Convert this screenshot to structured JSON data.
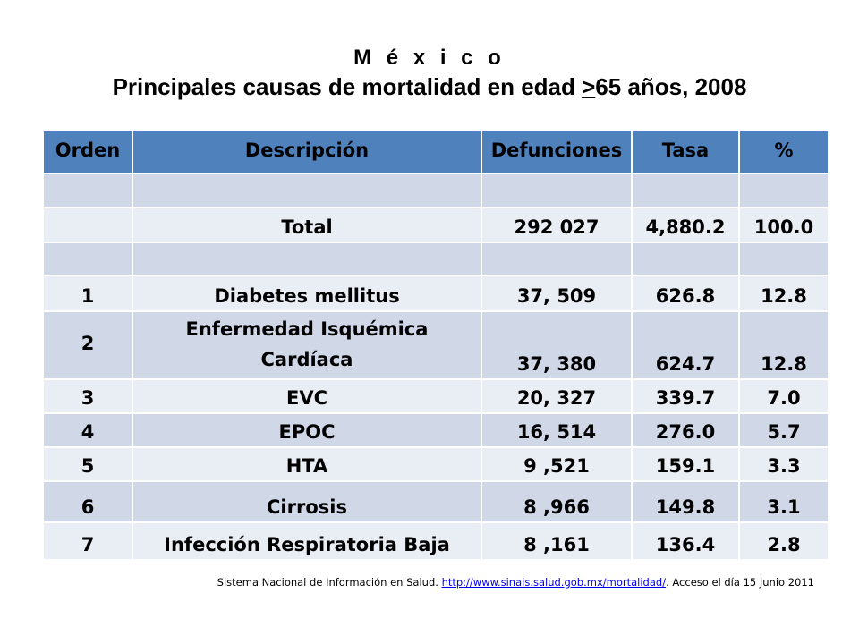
{
  "title": {
    "line1": "M é x i c o",
    "line2_prefix": "Principales causas de mortalidad en edad ",
    "line2_underlined": ">",
    "line2_suffix": "65 años, 2008"
  },
  "table": {
    "headers": [
      "Orden",
      "Descripción",
      "Defunciones",
      "Tasa",
      "%"
    ],
    "total_row": [
      "",
      "Total",
      "292 027",
      "4,880.2",
      "100.0"
    ],
    "rows": [
      [
        "1",
        "Diabetes mellitus",
        "37, 509",
        "626.8",
        "12.8"
      ],
      [
        "2",
        "Enfermedad Isquémica Cardíaca",
        "37, 380",
        "624.7",
        "12.8"
      ],
      [
        "3",
        "EVC",
        "20, 327",
        "339.7",
        "7.0"
      ],
      [
        "4",
        "EPOC",
        "16, 514",
        "276.0",
        "5.7"
      ],
      [
        "5",
        "HTA",
        "9 ,521",
        "159.1",
        "3.3"
      ],
      [
        "6",
        "Cirrosis",
        "8 ,966",
        "149.8",
        "3.1"
      ],
      [
        "7",
        "Infección Respiratoria Baja",
        "8 ,161",
        "136.4",
        "2.8"
      ]
    ]
  },
  "source": {
    "prefix": "Sistema Nacional de Información en Salud. ",
    "link": "http://www.sinais.salud.gob.mx/mortalidad/",
    "suffix": ".  Acceso el día 15 Junio 2011"
  },
  "colors": {
    "header": "#4f81bd",
    "row_odd": "#d0d8e8",
    "row_even": "#e9edf4",
    "link": "#0000ee"
  }
}
